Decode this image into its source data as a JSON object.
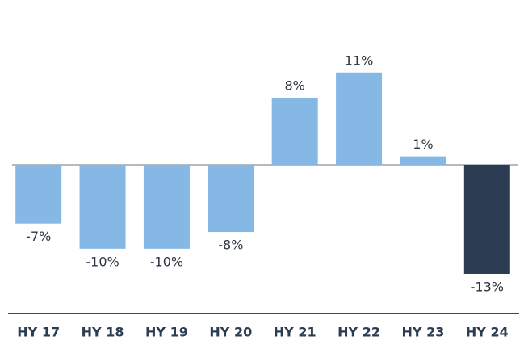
{
  "chart_data": {
    "type": "bar",
    "categories": [
      "HY 17",
      "HY 18",
      "HY 19",
      "HY 20",
      "HY 21",
      "HY 22",
      "HY 23",
      "HY 24"
    ],
    "values": [
      -7,
      -10,
      -10,
      -8,
      8,
      11,
      1,
      -13
    ],
    "value_labels": [
      "-7%",
      "-10%",
      "-10%",
      "-8%",
      "8%",
      "11%",
      "1%",
      "-13%"
    ],
    "colors": [
      "#86b8e6",
      "#86b8e6",
      "#86b8e6",
      "#86b8e6",
      "#86b8e6",
      "#86b8e6",
      "#86b8e6",
      "#2c3c52"
    ]
  }
}
